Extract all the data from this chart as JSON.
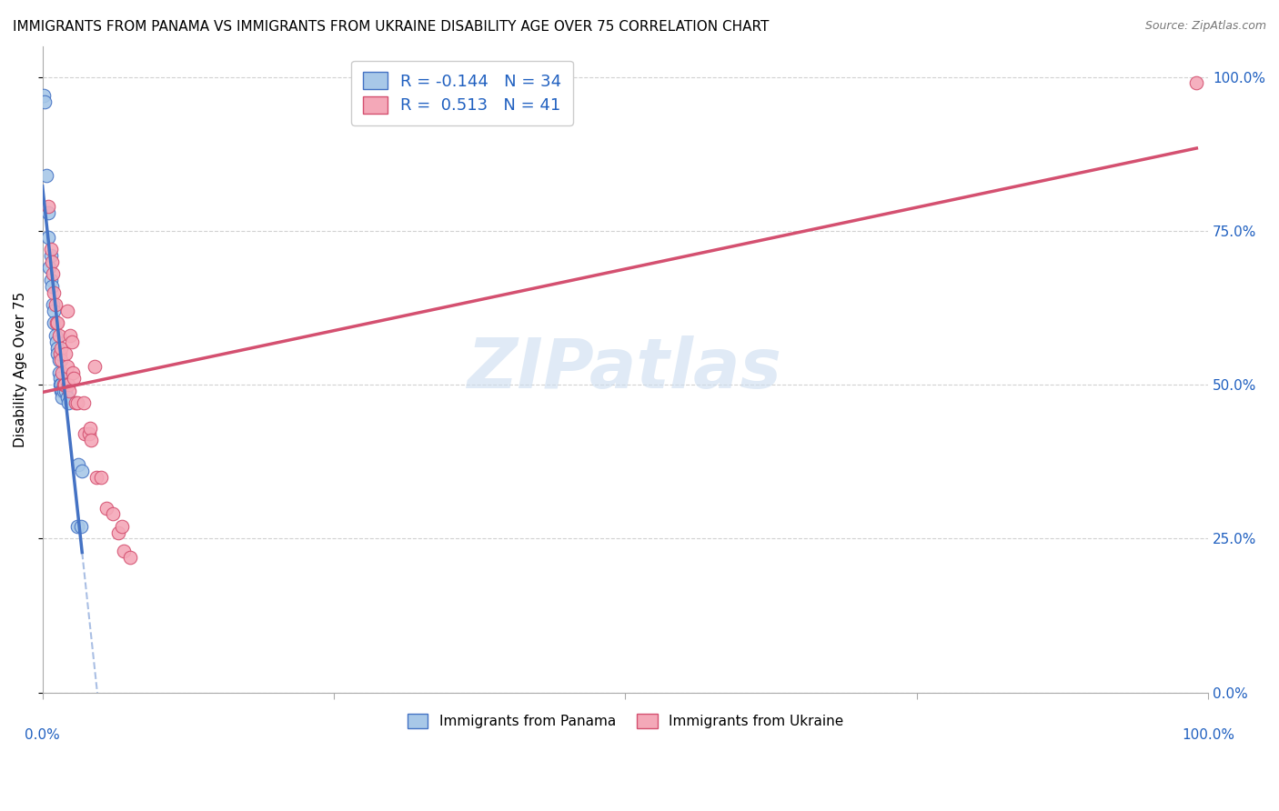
{
  "title": "IMMIGRANTS FROM PANAMA VS IMMIGRANTS FROM UKRAINE DISABILITY AGE OVER 75 CORRELATION CHART",
  "source": "Source: ZipAtlas.com",
  "ylabel": "Disability Age Over 75",
  "watermark": "ZIPatlas",
  "panama_R": -0.144,
  "panama_N": 34,
  "ukraine_R": 0.513,
  "ukraine_N": 41,
  "panama_color": "#a8c8e8",
  "ukraine_color": "#f4a8b8",
  "panama_line_color": "#4472c4",
  "ukraine_line_color": "#d45070",
  "panama_x": [
    0.001,
    0.002,
    0.003,
    0.005,
    0.005,
    0.006,
    0.007,
    0.007,
    0.008,
    0.009,
    0.01,
    0.01,
    0.011,
    0.012,
    0.013,
    0.013,
    0.014,
    0.014,
    0.015,
    0.015,
    0.016,
    0.016,
    0.017,
    0.017,
    0.018,
    0.018,
    0.019,
    0.02,
    0.021,
    0.022,
    0.03,
    0.031,
    0.033,
    0.034
  ],
  "panama_y": [
    0.97,
    0.96,
    0.84,
    0.78,
    0.74,
    0.69,
    0.71,
    0.67,
    0.66,
    0.63,
    0.62,
    0.6,
    0.58,
    0.57,
    0.56,
    0.55,
    0.54,
    0.52,
    0.51,
    0.5,
    0.5,
    0.49,
    0.49,
    0.48,
    0.5,
    0.49,
    0.5,
    0.49,
    0.48,
    0.47,
    0.27,
    0.37,
    0.27,
    0.36
  ],
  "ukraine_x": [
    0.005,
    0.007,
    0.008,
    0.009,
    0.01,
    0.011,
    0.012,
    0.013,
    0.014,
    0.015,
    0.016,
    0.016,
    0.017,
    0.018,
    0.019,
    0.02,
    0.021,
    0.021,
    0.022,
    0.023,
    0.024,
    0.025,
    0.026,
    0.027,
    0.028,
    0.03,
    0.035,
    0.036,
    0.04,
    0.041,
    0.042,
    0.045,
    0.046,
    0.05,
    0.055,
    0.06,
    0.065,
    0.068,
    0.07,
    0.075,
    0.99
  ],
  "ukraine_y": [
    0.79,
    0.72,
    0.7,
    0.68,
    0.65,
    0.63,
    0.6,
    0.6,
    0.58,
    0.55,
    0.56,
    0.54,
    0.52,
    0.5,
    0.5,
    0.55,
    0.53,
    0.62,
    0.5,
    0.49,
    0.58,
    0.57,
    0.52,
    0.51,
    0.47,
    0.47,
    0.47,
    0.42,
    0.42,
    0.43,
    0.41,
    0.53,
    0.35,
    0.35,
    0.3,
    0.29,
    0.26,
    0.27,
    0.23,
    0.22,
    0.99
  ],
  "xlim": [
    0.0,
    1.0
  ],
  "ylim": [
    0.0,
    1.05
  ],
  "yticks": [
    0.0,
    0.25,
    0.5,
    0.75,
    1.0
  ],
  "ytick_labels": [
    "0.0%",
    "25.0%",
    "50.0%",
    "75.0%",
    "100.0%"
  ],
  "xtick_positions": [
    0.0,
    0.25,
    0.5,
    0.75,
    1.0
  ],
  "grid_color": "#cccccc",
  "background_color": "#ffffff",
  "title_fontsize": 11,
  "axis_label_fontsize": 11,
  "tick_fontsize": 11,
  "legend_fontsize": 13
}
